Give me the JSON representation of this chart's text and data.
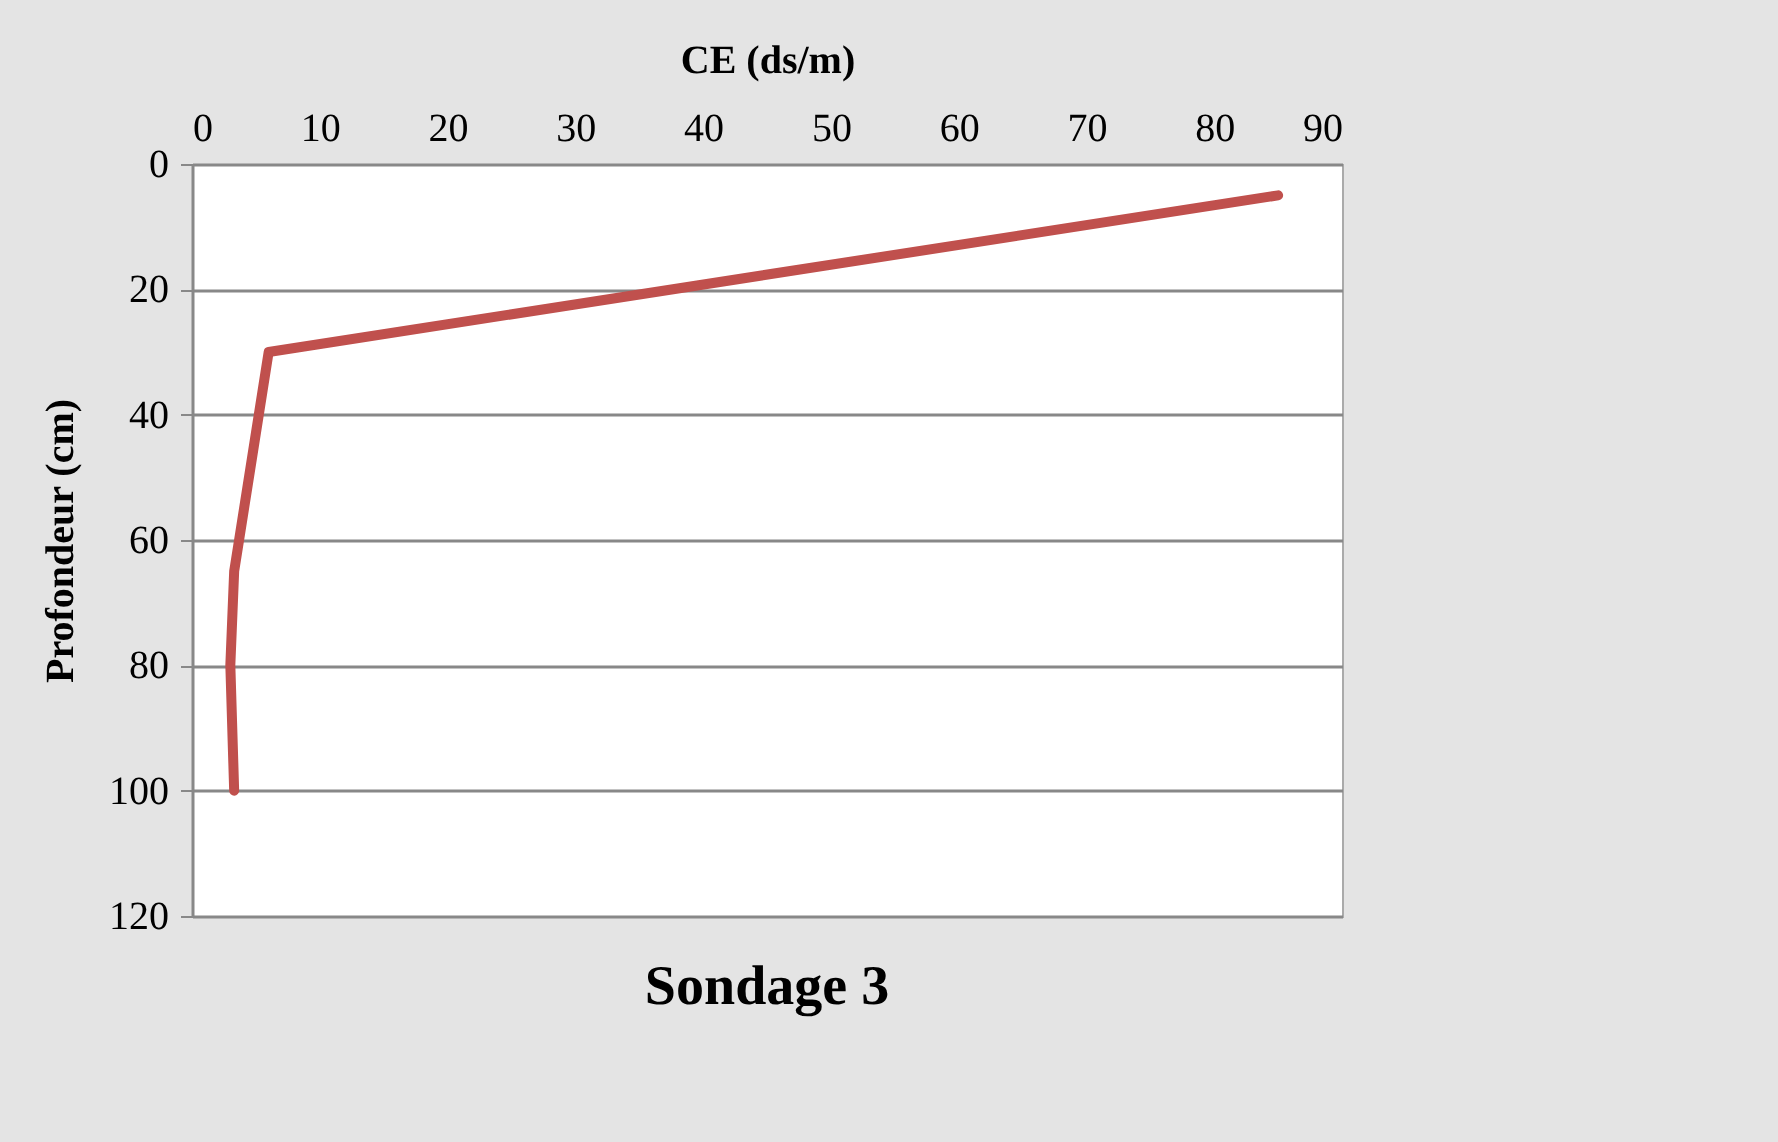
{
  "chart_data": {
    "type": "line",
    "title": "Sondage 3",
    "xlabel": "CE (ds/m)",
    "ylabel": "Profondeur (cm)",
    "x": [
      85,
      6,
      3.3,
      3,
      3.3
    ],
    "series": [
      {
        "color": "#c0504d",
        "values": [
          5,
          30,
          65,
          80,
          100
        ]
      }
    ],
    "xlim": [
      0,
      90
    ],
    "xticks": [
      0,
      10,
      20,
      30,
      40,
      50,
      60,
      70,
      80,
      90
    ],
    "ylim": [
      120,
      0
    ],
    "yticks": [
      0,
      20,
      40,
      60,
      80,
      100,
      120
    ],
    "grid": "y",
    "legend": false,
    "marker": "none",
    "line_style": "solid"
  }
}
